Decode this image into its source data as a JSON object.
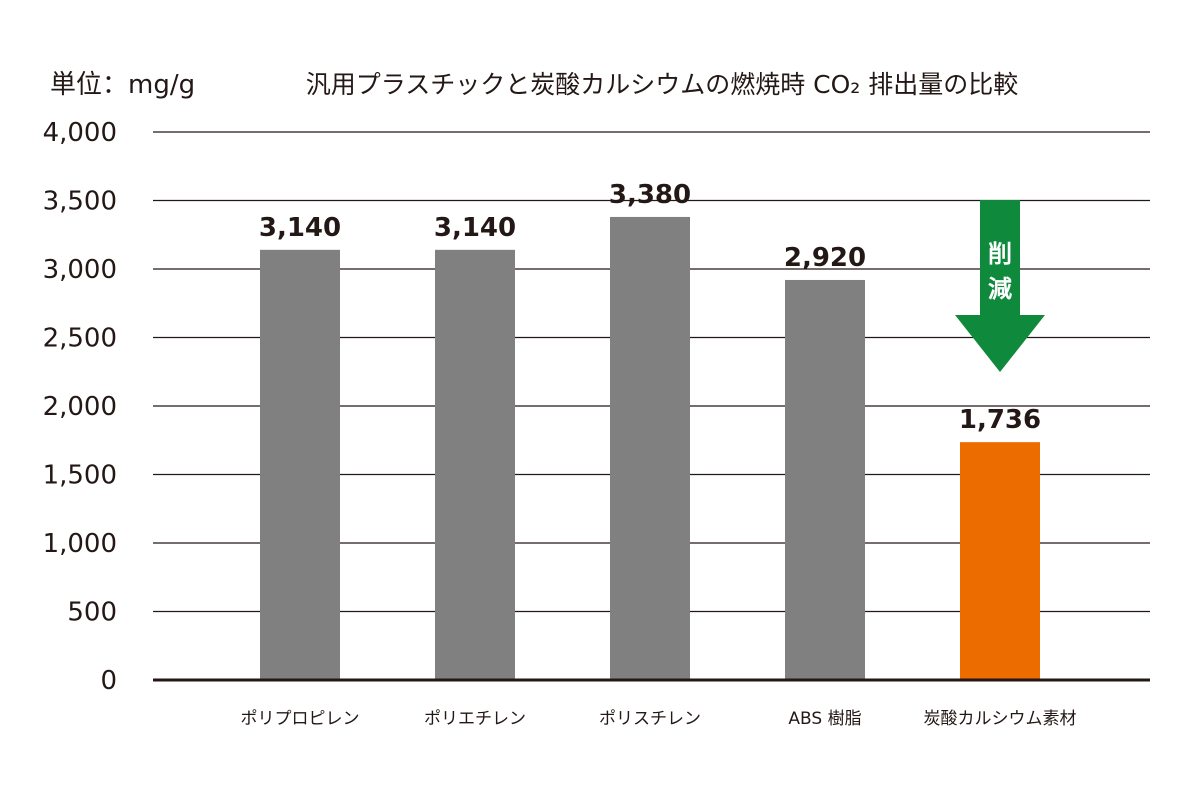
{
  "chart_data": {
    "type": "bar",
    "title": "汎用プラスチックと炭酸カルシウムの燃焼時 CO₂ 排出量の比較",
    "unit_label": "単位：mg/g",
    "categories": [
      "ポリプロピレン",
      "ポリエチレン",
      "ポリスチレン",
      "ABS 樹脂",
      "炭酸カルシウム素材"
    ],
    "values": [
      3140,
      3140,
      3380,
      2920,
      1736
    ],
    "value_labels": [
      "3,140",
      "3,140",
      "3,380",
      "2,920",
      "1,736"
    ],
    "y_ticks": [
      "0",
      "500",
      "1,000",
      "1,500",
      "2,000",
      "2,500",
      "3,000",
      "3,500",
      "4,000"
    ],
    "ylim": [
      0,
      4000
    ],
    "grid": true,
    "colors": {
      "default_bar": "#808080",
      "highlight_bar": "#ec6c00",
      "arrow": "#0f8a3c",
      "text": "#231815",
      "grid": "#231815"
    },
    "highlight_index": 4,
    "annotation": {
      "text_line1": "削",
      "text_line2": "減"
    }
  }
}
